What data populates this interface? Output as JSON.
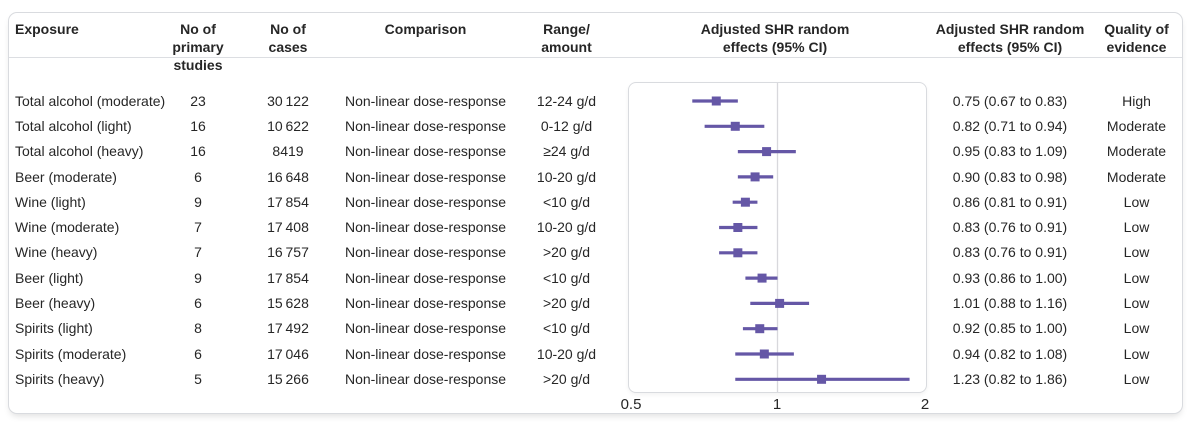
{
  "colors": {
    "accent_purple": "#6557a6",
    "frame_border": "#d9dbdf",
    "reference_line": "#d8d8dc",
    "text": "#262626"
  },
  "table": {
    "headers": [
      {
        "lines": [
          "Exposure"
        ]
      },
      {
        "lines": [
          "No of primary",
          "studies"
        ]
      },
      {
        "lines": [
          "No of",
          "cases"
        ]
      },
      {
        "lines": [
          "Comparison"
        ]
      },
      {
        "lines": [
          "Range/",
          "amount"
        ]
      },
      {
        "lines": [
          "Adjusted SHR random",
          "effects (95% CI)"
        ]
      },
      {
        "lines": [
          "Adjusted SHR random",
          "effects (95% CI)"
        ]
      },
      {
        "lines": [
          "Quality of",
          "evidence"
        ]
      }
    ]
  },
  "chart_data": {
    "type": "forest",
    "effect_measure": "Adjusted SHR (95% CI)",
    "x_axis": {
      "scale": "log",
      "range": [
        0.5,
        2
      ],
      "ticks": [
        0.5,
        1,
        2
      ],
      "tick_labels": [
        "0.5",
        "1",
        "2"
      ],
      "reference_line": 1
    },
    "rows": [
      {
        "exposure": "Total alcohol (moderate)",
        "n_studies": "23",
        "n_cases": "30 122",
        "comparison": "Non-linear dose-response",
        "range_amount": "12-24 g/d",
        "shr": 0.75,
        "ci_low": 0.67,
        "ci_high": 0.83,
        "shr_label": "0.75 (0.67 to 0.83)",
        "quality": "High"
      },
      {
        "exposure": "Total alcohol (light)",
        "n_studies": "16",
        "n_cases": "10 622",
        "comparison": "Non-linear dose-response",
        "range_amount": "0-12 g/d",
        "shr": 0.82,
        "ci_low": 0.71,
        "ci_high": 0.94,
        "shr_label": "0.82 (0.71 to 0.94)",
        "quality": "Moderate"
      },
      {
        "exposure": "Total alcohol (heavy)",
        "n_studies": "16",
        "n_cases": "8419",
        "comparison": "Non-linear dose-response",
        "range_amount": "≥24 g/d",
        "shr": 0.95,
        "ci_low": 0.83,
        "ci_high": 1.09,
        "shr_label": "0.95 (0.83 to 1.09)",
        "quality": "Moderate"
      },
      {
        "exposure": "Beer (moderate)",
        "n_studies": "6",
        "n_cases": "16 648",
        "comparison": "Non-linear dose-response",
        "range_amount": "10-20 g/d",
        "shr": 0.9,
        "ci_low": 0.83,
        "ci_high": 0.98,
        "shr_label": "0.90 (0.83 to 0.98)",
        "quality": "Moderate"
      },
      {
        "exposure": "Wine (light)",
        "n_studies": "9",
        "n_cases": "17 854",
        "comparison": "Non-linear dose-response",
        "range_amount": "<10 g/d",
        "shr": 0.86,
        "ci_low": 0.81,
        "ci_high": 0.91,
        "shr_label": "0.86 (0.81 to 0.91)",
        "quality": "Low"
      },
      {
        "exposure": "Wine (moderate)",
        "n_studies": "7",
        "n_cases": "17 408",
        "comparison": "Non-linear dose-response",
        "range_amount": "10-20 g/d",
        "shr": 0.83,
        "ci_low": 0.76,
        "ci_high": 0.91,
        "shr_label": "0.83 (0.76 to 0.91)",
        "quality": "Low"
      },
      {
        "exposure": "Wine (heavy)",
        "n_studies": "7",
        "n_cases": "16 757",
        "comparison": "Non-linear dose-response",
        "range_amount": ">20 g/d",
        "shr": 0.83,
        "ci_low": 0.76,
        "ci_high": 0.91,
        "shr_label": "0.83 (0.76 to 0.91)",
        "quality": "Low"
      },
      {
        "exposure": "Beer (light)",
        "n_studies": "9",
        "n_cases": "17 854",
        "comparison": "Non-linear dose-response",
        "range_amount": "<10 g/d",
        "shr": 0.93,
        "ci_low": 0.86,
        "ci_high": 1.0,
        "shr_label": "0.93 (0.86 to 1.00)",
        "quality": "Low"
      },
      {
        "exposure": "Beer (heavy)",
        "n_studies": "6",
        "n_cases": "15 628",
        "comparison": "Non-linear dose-response",
        "range_amount": ">20 g/d",
        "shr": 1.01,
        "ci_low": 0.88,
        "ci_high": 1.16,
        "shr_label": "1.01 (0.88 to 1.16)",
        "quality": "Low"
      },
      {
        "exposure": "Spirits (light)",
        "n_studies": "8",
        "n_cases": "17 492",
        "comparison": "Non-linear dose-response",
        "range_amount": "<10 g/d",
        "shr": 0.92,
        "ci_low": 0.85,
        "ci_high": 1.0,
        "shr_label": "0.92 (0.85 to 1.00)",
        "quality": "Low"
      },
      {
        "exposure": "Spirits (moderate)",
        "n_studies": "6",
        "n_cases": "17 046",
        "comparison": "Non-linear dose-response",
        "range_amount": "10-20 g/d",
        "shr": 0.94,
        "ci_low": 0.82,
        "ci_high": 1.08,
        "shr_label": "0.94 (0.82 to 1.08)",
        "quality": "Low"
      },
      {
        "exposure": "Spirits (heavy)",
        "n_studies": "5",
        "n_cases": "15 266",
        "comparison": "Non-linear dose-response",
        "range_amount": ">20 g/d",
        "shr": 1.23,
        "ci_low": 0.82,
        "ci_high": 1.86,
        "shr_label": "1.23 (0.82 to 1.86)",
        "quality": "Low"
      }
    ]
  }
}
